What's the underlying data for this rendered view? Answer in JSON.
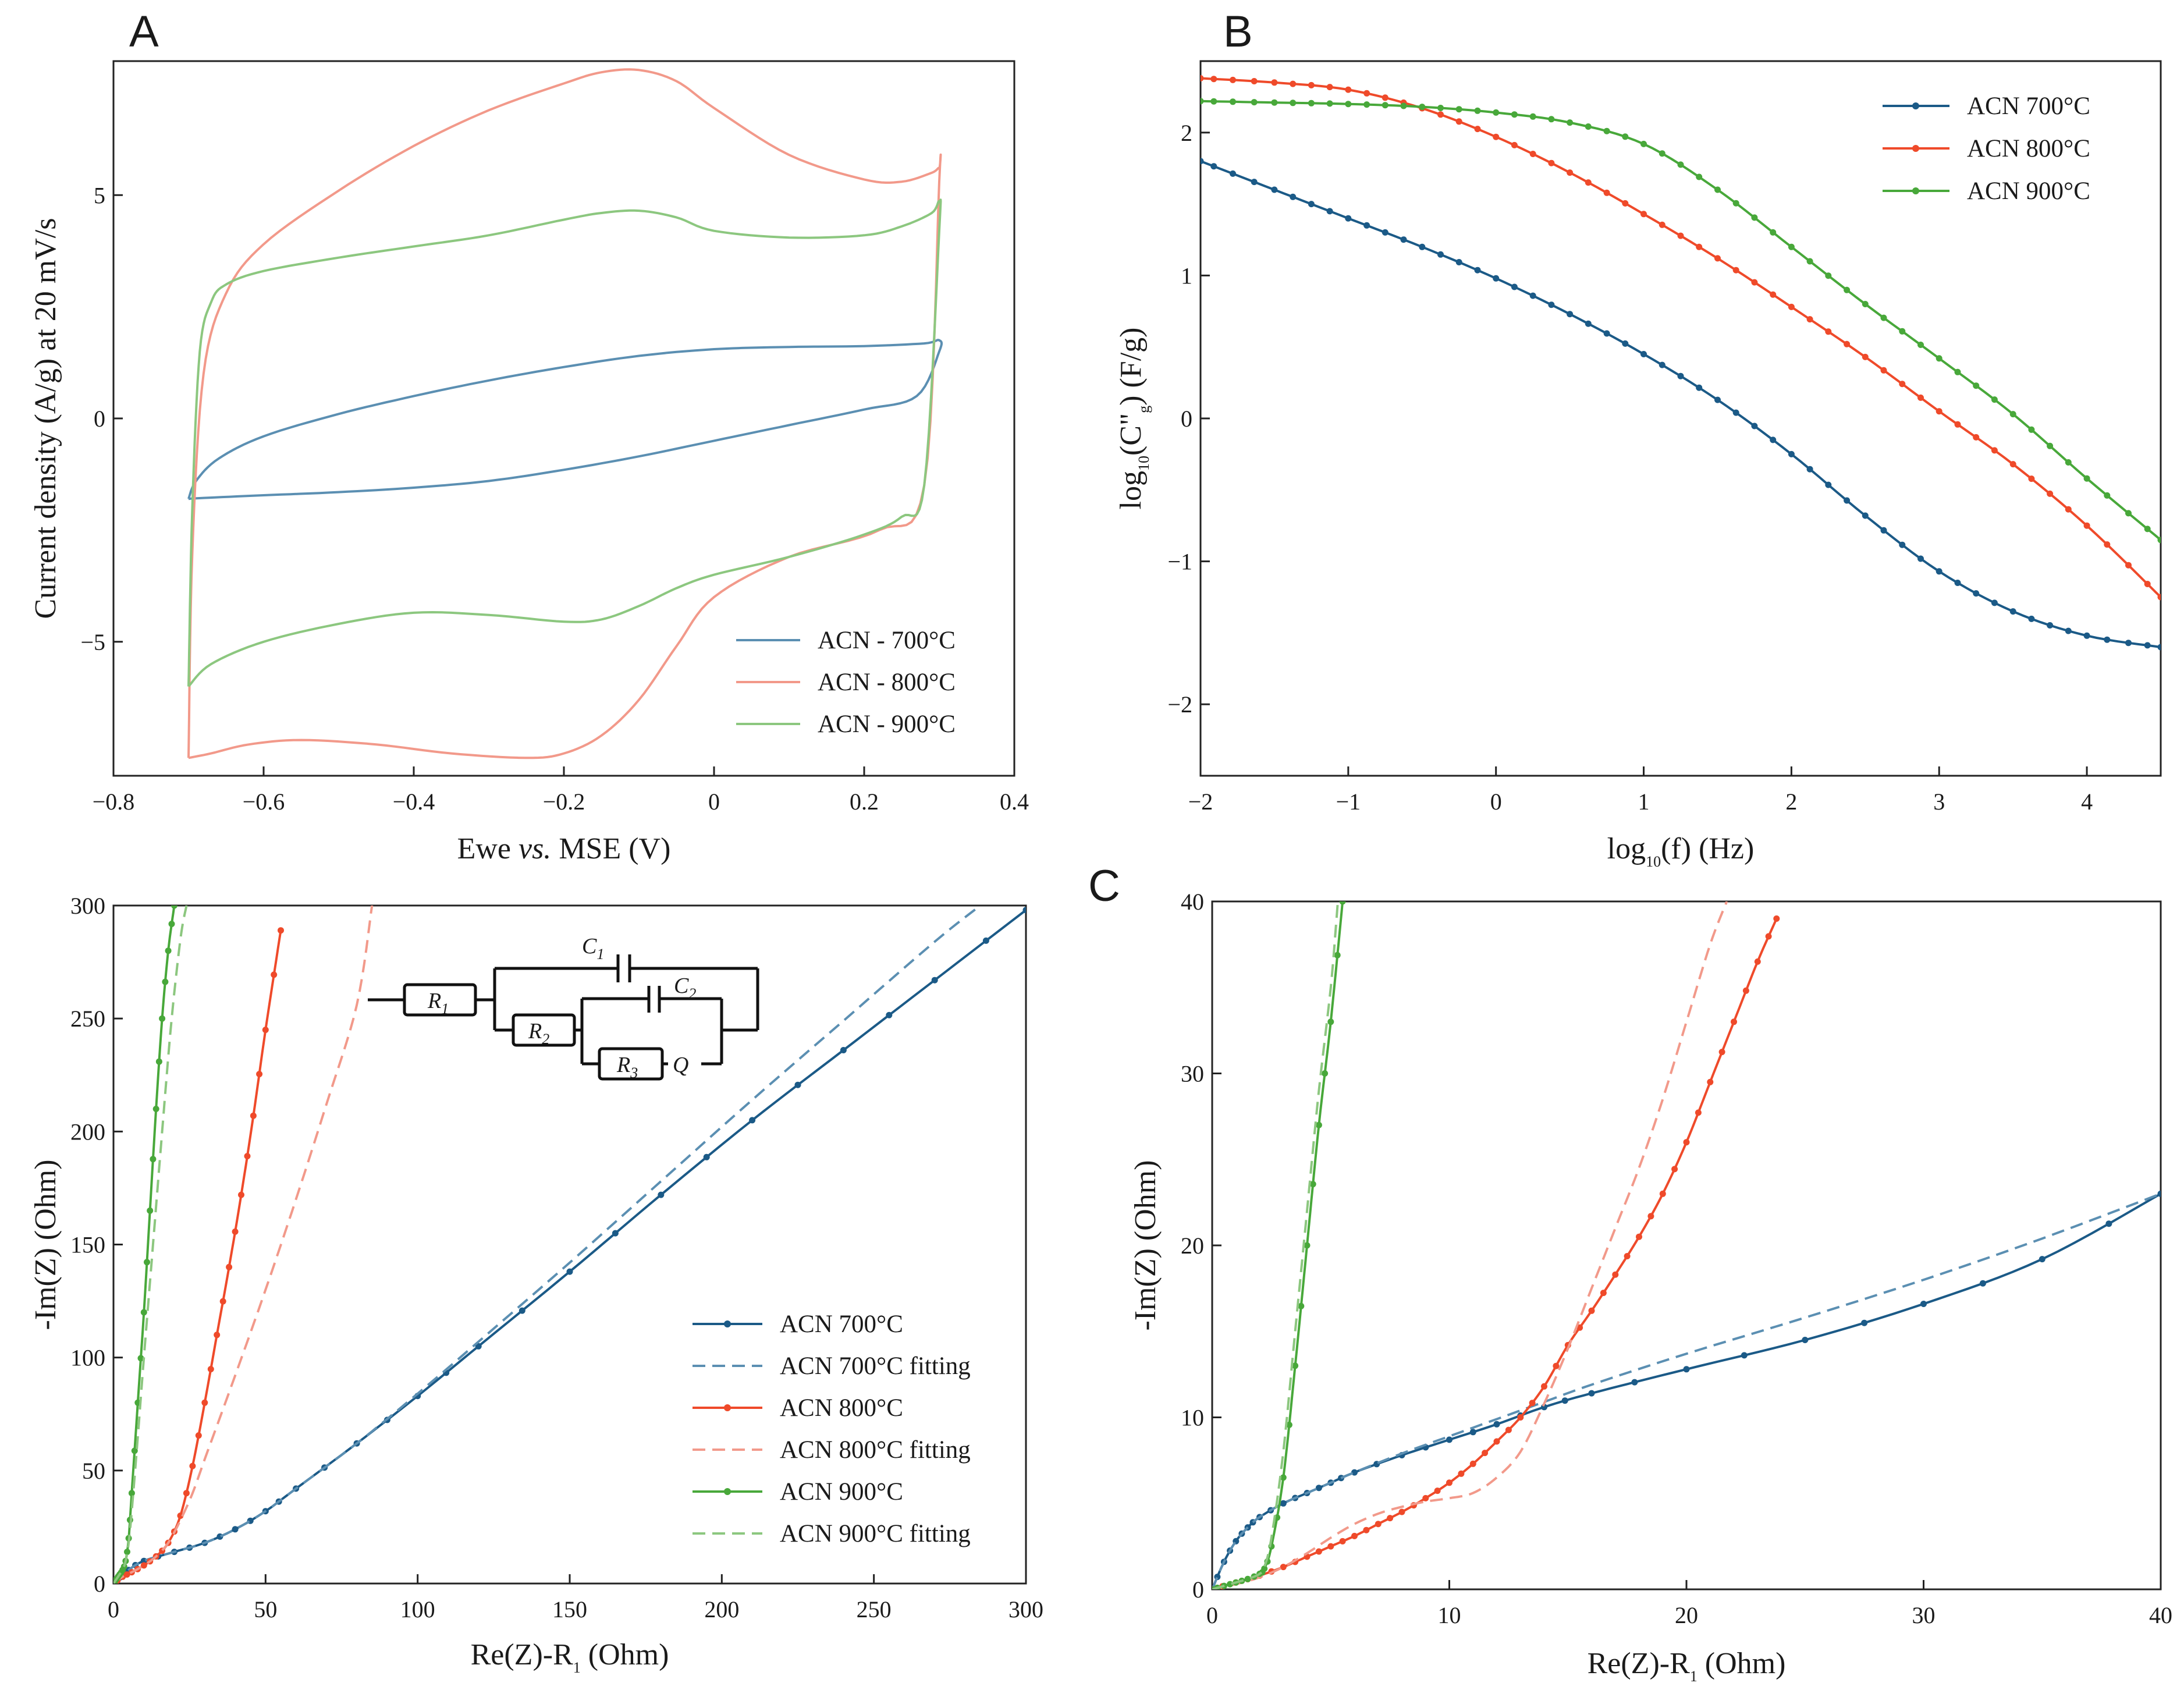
{
  "colors": {
    "c700": "#1b5a87",
    "c800": "#ef4a2a",
    "c900": "#48a83a",
    "c700_light": "#5b8fb2",
    "c800_light": "#f2998a",
    "c900_light": "#8cc77f"
  },
  "chart_data": [
    {
      "id": "A",
      "type": "line",
      "letter": "A",
      "xlabel_pre": "Ewe ",
      "xlabel_it": "vs.",
      "xlabel_post": " MSE (V)",
      "ylabel": "Current density (A/g) at 20 mV/s",
      "xlim": [
        -0.8,
        0.4
      ],
      "ylim": [
        -8,
        8
      ],
      "xticks": [
        -0.8,
        -0.6,
        -0.4,
        -0.2,
        0,
        0.2,
        0.4
      ],
      "xtick_labels": [
        "−0.8",
        "−0.6",
        "−0.4",
        "−0.2",
        "0",
        "0.2",
        "0.4"
      ],
      "yticks": [
        -5,
        0,
        5
      ],
      "ytick_labels": [
        "−5",
        "0",
        "5"
      ],
      "legend_position": "bottom-right",
      "series": [
        {
          "name": "ACN - 700°C",
          "color": "#5b8fb2",
          "x": [
            -0.7,
            -0.69,
            -0.66,
            -0.6,
            -0.5,
            -0.4,
            -0.3,
            -0.2,
            -0.1,
            0,
            0.1,
            0.2,
            0.28,
            0.3,
            0.3,
            0.27,
            0.2,
            0.1,
            0,
            -0.1,
            -0.2,
            -0.3,
            -0.4,
            -0.5,
            -0.6,
            -0.68,
            -0.7
          ],
          "y": [
            -1.8,
            -1.4,
            -0.9,
            -0.4,
            0.1,
            0.5,
            0.85,
            1.15,
            1.4,
            1.55,
            1.6,
            1.62,
            1.68,
            1.75,
            1.5,
            0.5,
            0.2,
            -0.15,
            -0.5,
            -0.85,
            -1.15,
            -1.4,
            -1.55,
            -1.65,
            -1.72,
            -1.78,
            -1.8
          ]
        },
        {
          "name": "ACN - 800°C",
          "color": "#f2998a",
          "x": [
            -0.7,
            -0.695,
            -0.68,
            -0.65,
            -0.6,
            -0.5,
            -0.4,
            -0.3,
            -0.2,
            -0.15,
            -0.1,
            -0.05,
            0,
            0.1,
            0.2,
            0.25,
            0.29,
            0.3,
            0.3,
            0.28,
            0.22,
            0.1,
            0,
            -0.05,
            -0.1,
            -0.15,
            -0.2,
            -0.25,
            -0.35,
            -0.45,
            -0.55,
            -0.62,
            -0.67,
            -0.7
          ],
          "y": [
            -7.6,
            -3,
            1,
            2.8,
            3.9,
            5.1,
            6.1,
            6.9,
            7.5,
            7.75,
            7.8,
            7.55,
            6.95,
            5.9,
            5.35,
            5.3,
            5.5,
            5.6,
            5.3,
            -1.5,
            -2.5,
            -3.1,
            -4,
            -5.1,
            -6.3,
            -7.1,
            -7.5,
            -7.6,
            -7.5,
            -7.3,
            -7.2,
            -7.3,
            -7.5,
            -7.6
          ]
        },
        {
          "name": "ACN - 900°C",
          "color": "#8cc77f",
          "x": [
            -0.7,
            -0.695,
            -0.685,
            -0.67,
            -0.65,
            -0.6,
            -0.5,
            -0.4,
            -0.3,
            -0.2,
            -0.15,
            -0.1,
            -0.05,
            0,
            0.1,
            0.2,
            0.25,
            0.29,
            0.3,
            0.3,
            0.28,
            0.25,
            0.2,
            0.1,
            0,
            -0.05,
            -0.1,
            -0.15,
            -0.2,
            -0.3,
            -0.4,
            -0.5,
            -0.6,
            -0.67,
            -0.7
          ],
          "y": [
            -6,
            -2,
            1.5,
            2.6,
            3,
            3.3,
            3.6,
            3.85,
            4.1,
            4.45,
            4.6,
            4.65,
            4.5,
            4.2,
            4.05,
            4.1,
            4.3,
            4.6,
            4.85,
            4.2,
            -1.5,
            -2.2,
            -2.6,
            -3.1,
            -3.5,
            -3.8,
            -4.2,
            -4.5,
            -4.55,
            -4.4,
            -4.35,
            -4.6,
            -5,
            -5.5,
            -6
          ]
        }
      ]
    },
    {
      "id": "B",
      "type": "line",
      "letter": "B",
      "xlabel": "log",
      "xlabel_sub": "10",
      "xlabel_post": "(f) (Hz)",
      "ylabel_pre": "log",
      "ylabel_sub": "10",
      "ylabel_mid": "(C\"",
      "ylabel_sub2": "g",
      "ylabel_post": ") (F/g)",
      "xlim": [
        -2,
        4.5
      ],
      "ylim": [
        -2.5,
        2.5
      ],
      "xticks": [
        -2,
        -1,
        0,
        1,
        2,
        3,
        4
      ],
      "xtick_labels": [
        "−2",
        "−1",
        "0",
        "1",
        "2",
        "3",
        "4"
      ],
      "yticks": [
        -2,
        -1,
        0,
        1,
        2
      ],
      "ytick_labels": [
        "−2",
        "−1",
        "0",
        "1",
        "2"
      ],
      "legend_position": "top-right",
      "series": [
        {
          "name": "ACN 700°C",
          "color": "#1b5a87",
          "x": [
            -2,
            -1.5,
            -1,
            -0.5,
            0,
            0.5,
            1,
            1.5,
            2,
            2.5,
            3,
            3.5,
            4,
            4.5
          ],
          "y": [
            1.8,
            1.6,
            1.4,
            1.2,
            0.98,
            0.73,
            0.45,
            0.13,
            -0.25,
            -0.68,
            -1.07,
            -1.35,
            -1.52,
            -1.6
          ]
        },
        {
          "name": "ACN 800°C",
          "color": "#ef4a2a",
          "x": [
            -2,
            -1.5,
            -1,
            -0.5,
            0,
            0.5,
            1,
            1.5,
            2,
            2.5,
            3,
            3.5,
            4,
            4.5
          ],
          "y": [
            2.38,
            2.35,
            2.3,
            2.17,
            1.97,
            1.72,
            1.43,
            1.12,
            0.78,
            0.43,
            0.05,
            -0.32,
            -0.75,
            -1.25
          ]
        },
        {
          "name": "ACN 900°C",
          "color": "#48a83a",
          "x": [
            -2,
            -1.5,
            -1,
            -0.5,
            0,
            0.5,
            1,
            1.5,
            2,
            2.5,
            3,
            3.5,
            4,
            4.5
          ],
          "y": [
            2.22,
            2.21,
            2.2,
            2.18,
            2.14,
            2.07,
            1.92,
            1.6,
            1.2,
            0.8,
            0.42,
            0.03,
            -0.42,
            -0.85
          ]
        }
      ]
    },
    {
      "id": "D",
      "type": "line",
      "letter": "",
      "xlabel_pre": "Re(Z)-R",
      "xlabel_sub": "1",
      "xlabel_post": " (Ohm)",
      "ylabel": "-Im(Z) (Ohm)",
      "xlim": [
        0,
        300
      ],
      "ylim": [
        0,
        300
      ],
      "xticks": [
        0,
        50,
        100,
        150,
        200,
        250,
        300
      ],
      "xtick_labels": [
        "0",
        "50",
        "100",
        "150",
        "200",
        "250",
        "300"
      ],
      "yticks": [
        0,
        50,
        100,
        150,
        200,
        250,
        300
      ],
      "ytick_labels": [
        "0",
        "50",
        "100",
        "150",
        "200",
        "250",
        "300"
      ],
      "legend_position": "bottom-right",
      "circuit": {
        "R1": "R",
        "R1_sub": "1",
        "C1": "C",
        "C1_sub": "1",
        "C2": "C",
        "C2_sub": "2",
        "R2": "R",
        "R2_sub": "2",
        "R3": "R",
        "R3_sub": "3",
        "Q": "Q"
      },
      "series": [
        {
          "name": "ACN 700°C",
          "color": "#1b5a87",
          "dash": false,
          "markers": true,
          "x": [
            0,
            5,
            10,
            20,
            30,
            40,
            50,
            60,
            80,
            100,
            120,
            150,
            180,
            210,
            240,
            270,
            300
          ],
          "y": [
            0,
            6,
            10,
            14,
            18,
            24,
            32,
            42,
            62,
            83,
            105,
            138,
            172,
            205,
            236,
            267,
            298
          ]
        },
        {
          "name": "ACN 700°C fitting",
          "color": "#5b8fb2",
          "dash": true,
          "markers": false,
          "x": [
            0,
            5,
            10,
            20,
            30,
            40,
            50,
            60,
            80,
            100,
            120,
            150,
            180,
            210,
            240,
            270,
            285
          ],
          "y": [
            0,
            6,
            10,
            14,
            18,
            24,
            32,
            42,
            62,
            84,
            107,
            142,
            178,
            214,
            249,
            284,
            300
          ]
        },
        {
          "name": "ACN 800°C",
          "color": "#ef4a2a",
          "dash": false,
          "markers": true,
          "x": [
            0,
            3,
            6,
            10,
            14,
            18,
            22,
            26,
            30,
            34,
            38,
            42,
            46,
            50,
            55
          ],
          "y": [
            0,
            3,
            5,
            8,
            12,
            18,
            30,
            52,
            80,
            110,
            140,
            172,
            207,
            245,
            289
          ]
        },
        {
          "name": "ACN 800°C fitting",
          "color": "#f2998a",
          "dash": true,
          "markers": false,
          "x": [
            0,
            3,
            6,
            10,
            14,
            18,
            22,
            26,
            30,
            40,
            50,
            60,
            70,
            80,
            85
          ],
          "y": [
            0,
            3,
            5,
            8,
            12,
            18,
            28,
            40,
            55,
            92,
            130,
            170,
            212,
            256,
            300
          ]
        },
        {
          "name": "ACN 900°C",
          "color": "#48a83a",
          "dash": false,
          "markers": true,
          "x": [
            0,
            1,
            2,
            3,
            4,
            5,
            6,
            8,
            10,
            12,
            14,
            16,
            18,
            20
          ],
          "y": [
            0,
            2,
            4,
            6,
            10,
            20,
            40,
            80,
            120,
            165,
            210,
            250,
            280,
            300
          ]
        },
        {
          "name": "ACN 900°C fitting",
          "color": "#8cc77f",
          "dash": true,
          "markers": false,
          "x": [
            0,
            1,
            2,
            3,
            4,
            5,
            6,
            8,
            10,
            13,
            16,
            19,
            22,
            24
          ],
          "y": [
            0,
            2,
            4,
            6,
            10,
            18,
            32,
            65,
            100,
            150,
            200,
            248,
            285,
            300
          ]
        }
      ]
    },
    {
      "id": "C",
      "type": "line",
      "letter": "C",
      "xlabel_pre": "Re(Z)-R",
      "xlabel_sub": "1",
      "xlabel_post": " (Ohm)",
      "ylabel": "-Im(Z) (Ohm)",
      "xlim": [
        0,
        40
      ],
      "ylim": [
        0,
        40
      ],
      "xticks": [
        0,
        10,
        20,
        30,
        40
      ],
      "xtick_labels": [
        "0",
        "10",
        "20",
        "30",
        "40"
      ],
      "yticks": [
        0,
        10,
        20,
        30,
        40
      ],
      "ytick_labels": [
        "0",
        "10",
        "20",
        "30",
        "40"
      ],
      "series": [
        {
          "name": "ACN 700°C",
          "color": "#1b5a87",
          "dash": false,
          "markers": true,
          "x": [
            0,
            0.5,
            1,
            1.5,
            2,
            3,
            4,
            5,
            6,
            8,
            10,
            12,
            14,
            16,
            20,
            25,
            30,
            35,
            40
          ],
          "y": [
            0,
            1.6,
            2.8,
            3.6,
            4.2,
            5.0,
            5.6,
            6.2,
            6.8,
            7.8,
            8.7,
            9.6,
            10.6,
            11.4,
            12.8,
            14.5,
            16.6,
            19.2,
            23.0
          ]
        },
        {
          "name": "ACN 700°C fitting",
          "color": "#5b8fb2",
          "dash": true,
          "markers": false,
          "x": [
            0,
            0.5,
            1,
            1.5,
            2,
            3,
            4,
            5,
            6,
            8,
            10,
            12,
            14,
            16,
            20,
            25,
            30,
            35,
            40
          ],
          "y": [
            0,
            1.6,
            2.8,
            3.6,
            4.2,
            5.0,
            5.6,
            6.2,
            6.8,
            7.9,
            8.9,
            9.9,
            10.9,
            11.9,
            13.7,
            15.8,
            18.0,
            20.4,
            23.0
          ]
        },
        {
          "name": "ACN 800°C",
          "color": "#ef4a2a",
          "dash": false,
          "markers": true,
          "x": [
            0,
            1,
            2,
            3,
            4,
            5,
            6,
            7,
            8,
            9,
            10,
            11,
            12,
            13,
            14,
            15,
            16,
            17,
            18,
            19,
            20,
            21,
            22,
            23,
            23.8
          ],
          "y": [
            0,
            0.4,
            0.8,
            1.3,
            1.9,
            2.5,
            3.1,
            3.8,
            4.5,
            5.3,
            6.2,
            7.3,
            8.6,
            10.0,
            11.8,
            14.2,
            16.2,
            18.3,
            20.5,
            23.0,
            26.0,
            29.5,
            33.0,
            36.5,
            39.0
          ]
        },
        {
          "name": "ACN 800°C fitting",
          "color": "#f2998a",
          "dash": true,
          "markers": false,
          "x": [
            0,
            1,
            2,
            3,
            4,
            5,
            6,
            7,
            8,
            9,
            10,
            11,
            12,
            13,
            14,
            15,
            16,
            17,
            18,
            19,
            20,
            21,
            21.7
          ],
          "y": [
            0,
            0.3,
            0.7,
            1.3,
            2.1,
            3.0,
            3.8,
            4.4,
            4.8,
            5.1,
            5.3,
            5.6,
            6.5,
            8.0,
            10.8,
            14.0,
            17.5,
            21.0,
            24.5,
            28.5,
            33.0,
            37.5,
            40.0
          ]
        },
        {
          "name": "ACN 900°C",
          "color": "#48a83a",
          "dash": false,
          "markers": true,
          "x": [
            0,
            0.5,
            1,
            1.5,
            2,
            2.2,
            2.5,
            3,
            3.5,
            4,
            4.5,
            5,
            5.5
          ],
          "y": [
            0,
            0.2,
            0.4,
            0.6,
            0.9,
            1.2,
            2.5,
            6.5,
            13.0,
            20.0,
            27.0,
            33.0,
            40.0
          ]
        },
        {
          "name": "ACN 900°C fitting",
          "color": "#8cc77f",
          "dash": true,
          "markers": false,
          "x": [
            0,
            0.5,
            1,
            1.5,
            2,
            2.2,
            2.5,
            3,
            3.5,
            4,
            4.5,
            5,
            5.3
          ],
          "y": [
            0,
            0.2,
            0.4,
            0.6,
            0.9,
            1.3,
            3.0,
            8.0,
            15.0,
            22.0,
            29.0,
            35.0,
            40.0
          ]
        }
      ]
    }
  ]
}
